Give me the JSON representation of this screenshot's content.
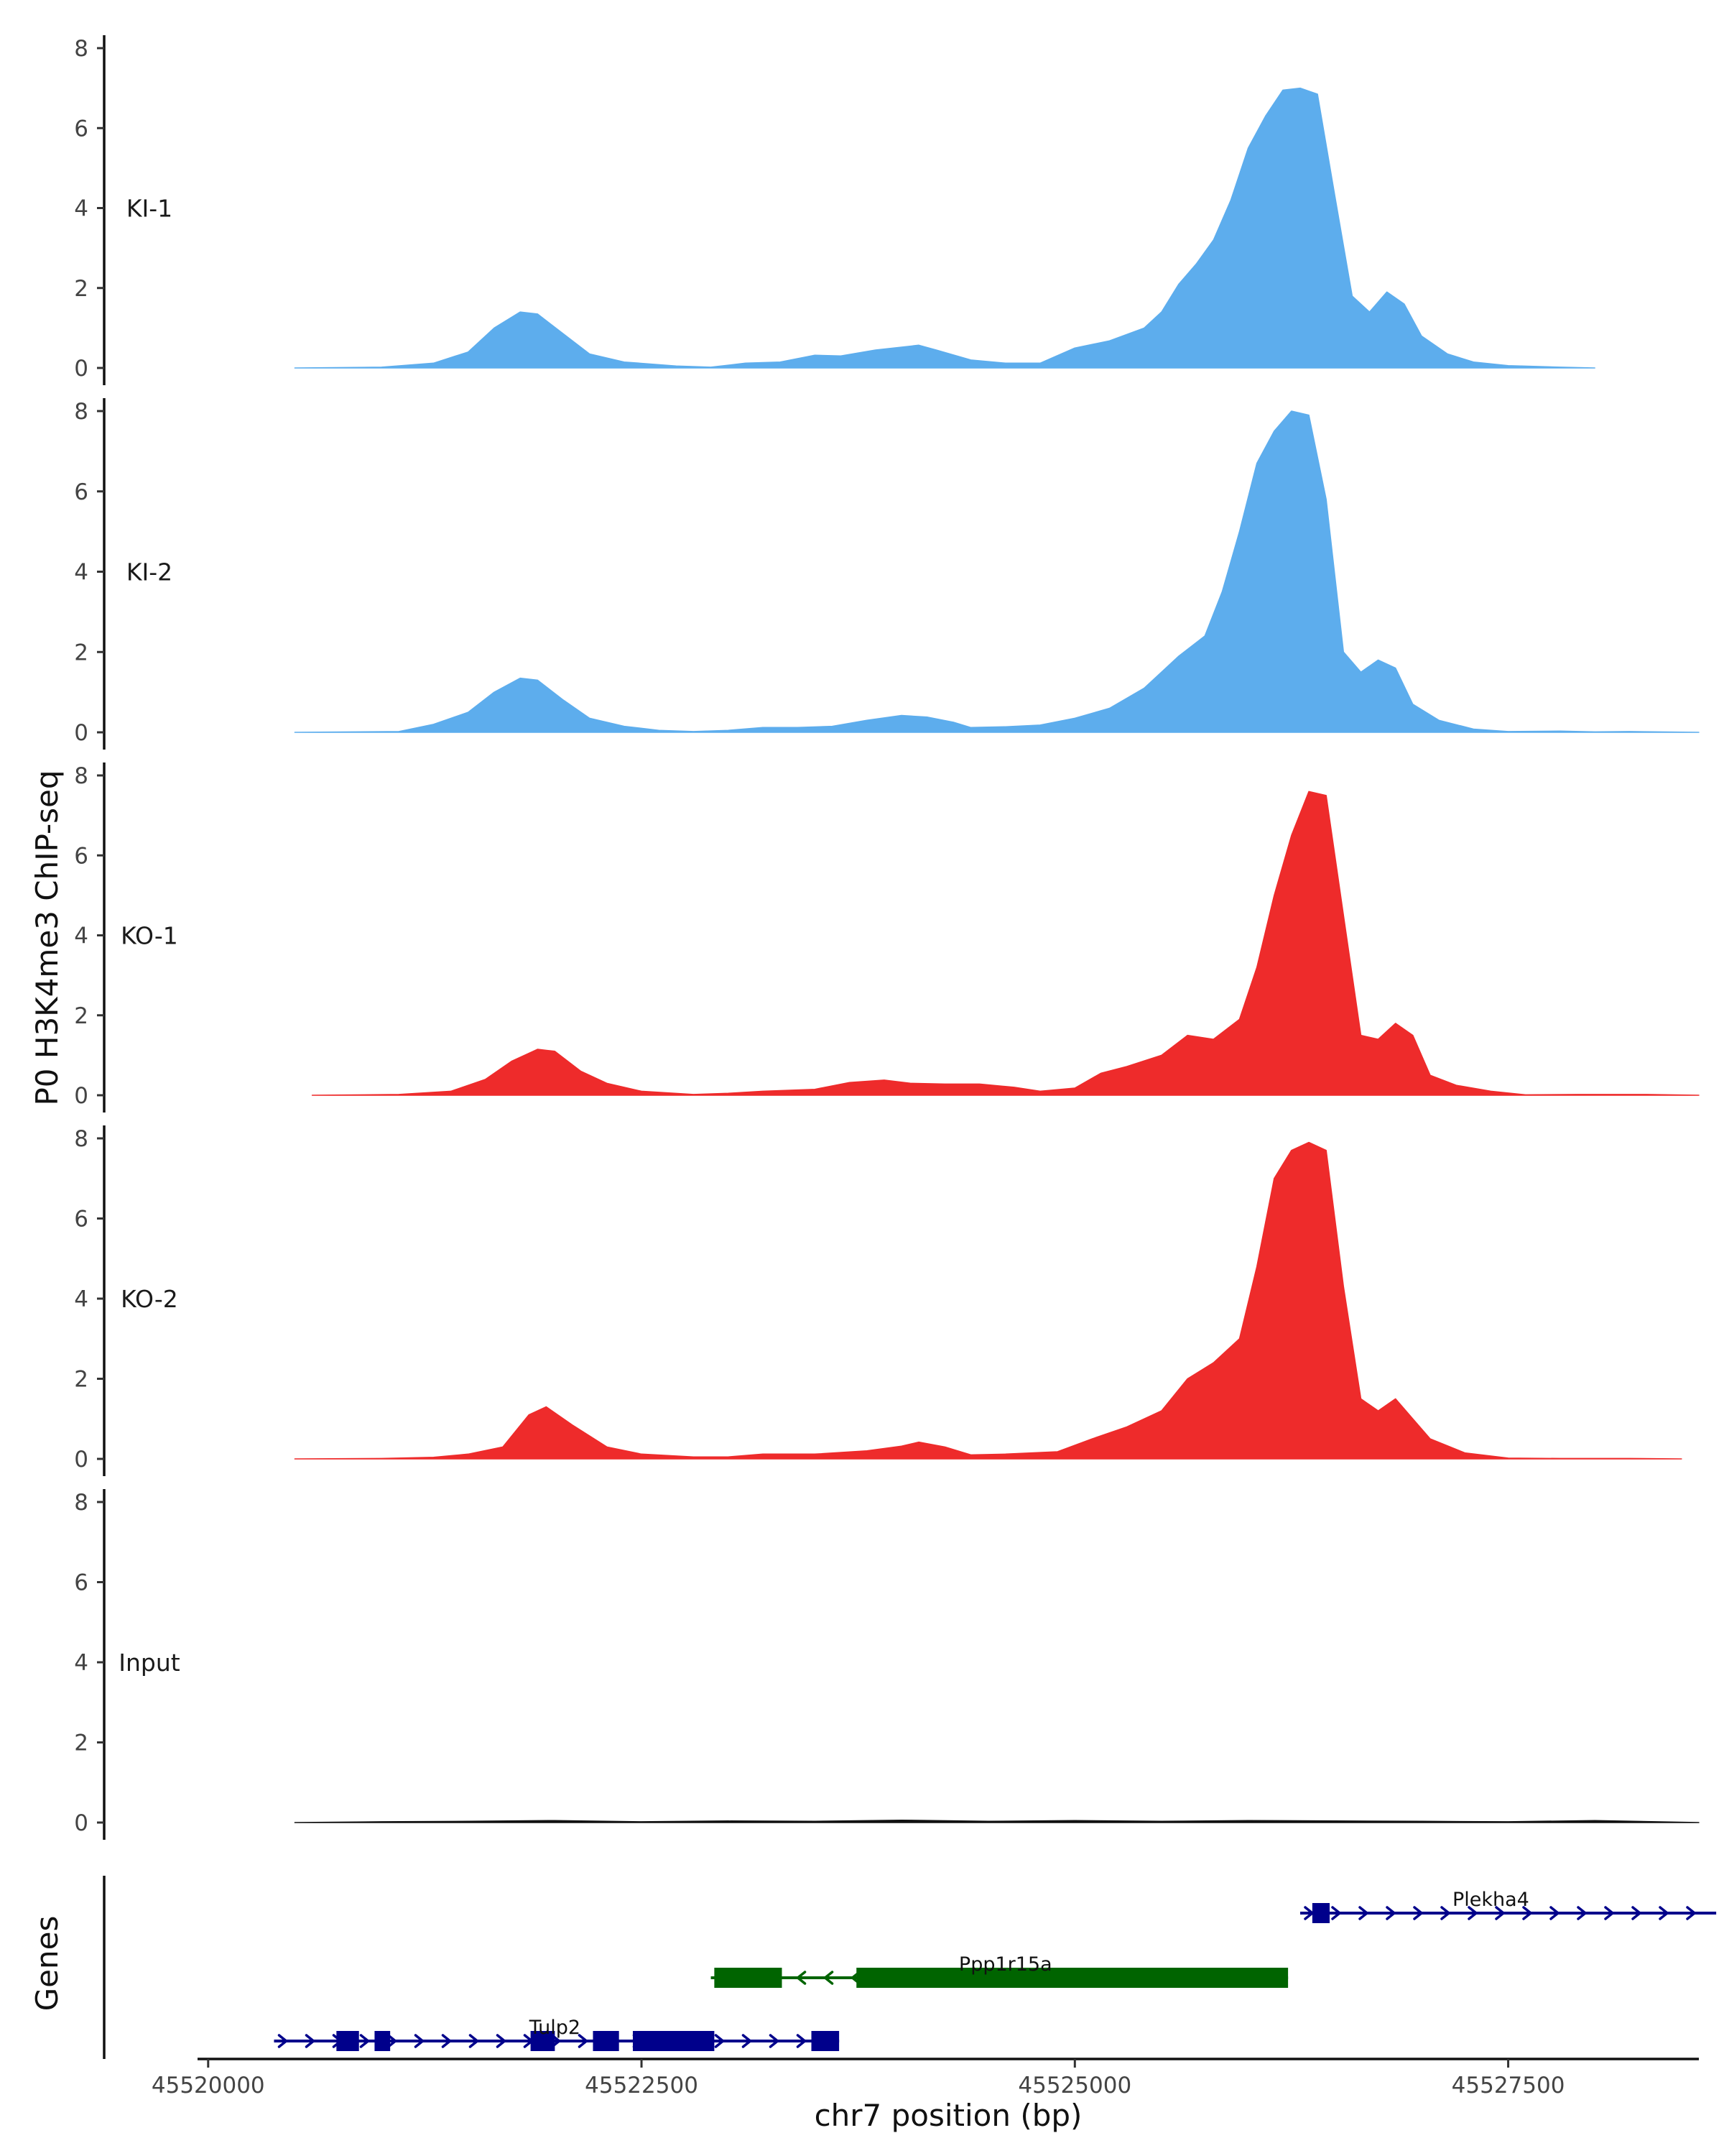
{
  "chart_data": {
    "type": "area",
    "ylabel": "P0 H3K4me3 ChIP-seq",
    "xlabel": "chr7 position (bp)",
    "genes_label": "Genes",
    "xlim": [
      45519400,
      45528600
    ],
    "xticks": [
      45520000,
      45522500,
      45525000,
      45527500
    ],
    "xtick_labels": [
      "45520000",
      "45522500",
      "45525000",
      "45527500"
    ],
    "ylim": [
      0,
      8.2
    ],
    "yticks": [
      0,
      2,
      4,
      6,
      8
    ],
    "ytick_labels": [
      "0",
      "2",
      "4",
      "6",
      "8"
    ],
    "tracks": [
      {
        "name": "KI-1",
        "color": "#5DADED",
        "points": [
          [
            45520500,
            0
          ],
          [
            45521000,
            0.02
          ],
          [
            45521300,
            0.12
          ],
          [
            45521500,
            0.4
          ],
          [
            45521650,
            1.0
          ],
          [
            45521800,
            1.4
          ],
          [
            45521900,
            1.35
          ],
          [
            45522050,
            0.85
          ],
          [
            45522200,
            0.35
          ],
          [
            45522400,
            0.15
          ],
          [
            45522700,
            0.05
          ],
          [
            45522900,
            0.02
          ],
          [
            45523100,
            0.12
          ],
          [
            45523300,
            0.15
          ],
          [
            45523500,
            0.32
          ],
          [
            45523650,
            0.3
          ],
          [
            45523850,
            0.45
          ],
          [
            45524100,
            0.57
          ],
          [
            45524200,
            0.45
          ],
          [
            45524400,
            0.2
          ],
          [
            45524600,
            0.12
          ],
          [
            45524800,
            0.12
          ],
          [
            45525000,
            0.5
          ],
          [
            45525200,
            0.68
          ],
          [
            45525400,
            1.0
          ],
          [
            45525500,
            1.4
          ],
          [
            45525600,
            2.1
          ],
          [
            45525700,
            2.6
          ],
          [
            45525800,
            3.2
          ],
          [
            45525900,
            4.2
          ],
          [
            45526000,
            5.5
          ],
          [
            45526100,
            6.3
          ],
          [
            45526200,
            6.95
          ],
          [
            45526300,
            7.0
          ],
          [
            45526400,
            6.85
          ],
          [
            45526500,
            4.3
          ],
          [
            45526600,
            1.8
          ],
          [
            45526700,
            1.4
          ],
          [
            45526800,
            1.9
          ],
          [
            45526900,
            1.6
          ],
          [
            45527000,
            0.8
          ],
          [
            45527150,
            0.35
          ],
          [
            45527300,
            0.15
          ],
          [
            45527500,
            0.06
          ],
          [
            45527800,
            0.02
          ],
          [
            45528000,
            0
          ]
        ]
      },
      {
        "name": "KI-2",
        "color": "#5DADED",
        "points": [
          [
            45520500,
            0
          ],
          [
            45521100,
            0.02
          ],
          [
            45521300,
            0.2
          ],
          [
            45521500,
            0.5
          ],
          [
            45521650,
            1.0
          ],
          [
            45521800,
            1.35
          ],
          [
            45521900,
            1.3
          ],
          [
            45522050,
            0.8
          ],
          [
            45522200,
            0.35
          ],
          [
            45522400,
            0.15
          ],
          [
            45522600,
            0.05
          ],
          [
            45522800,
            0.02
          ],
          [
            45523000,
            0.05
          ],
          [
            45523200,
            0.12
          ],
          [
            45523400,
            0.12
          ],
          [
            45523600,
            0.15
          ],
          [
            45523800,
            0.3
          ],
          [
            45524000,
            0.42
          ],
          [
            45524150,
            0.38
          ],
          [
            45524300,
            0.25
          ],
          [
            45524400,
            0.12
          ],
          [
            45524600,
            0.14
          ],
          [
            45524800,
            0.18
          ],
          [
            45525000,
            0.35
          ],
          [
            45525200,
            0.6
          ],
          [
            45525400,
            1.1
          ],
          [
            45525500,
            1.5
          ],
          [
            45525600,
            1.9
          ],
          [
            45525750,
            2.4
          ],
          [
            45525850,
            3.5
          ],
          [
            45525950,
            5.0
          ],
          [
            45526050,
            6.7
          ],
          [
            45526150,
            7.5
          ],
          [
            45526250,
            8.0
          ],
          [
            45526350,
            7.9
          ],
          [
            45526450,
            5.8
          ],
          [
            45526550,
            2.0
          ],
          [
            45526650,
            1.5
          ],
          [
            45526750,
            1.8
          ],
          [
            45526850,
            1.6
          ],
          [
            45526950,
            0.7
          ],
          [
            45527100,
            0.3
          ],
          [
            45527300,
            0.08
          ],
          [
            45527500,
            0.02
          ],
          [
            45527800,
            0.03
          ],
          [
            45528000,
            0.01
          ],
          [
            45528200,
            0.02
          ],
          [
            45528600,
            0
          ]
        ]
      },
      {
        "name": "KO-1",
        "color": "#EE2B2B",
        "points": [
          [
            45520600,
            0
          ],
          [
            45521100,
            0.02
          ],
          [
            45521400,
            0.1
          ],
          [
            45521600,
            0.4
          ],
          [
            45521750,
            0.85
          ],
          [
            45521900,
            1.15
          ],
          [
            45522000,
            1.1
          ],
          [
            45522150,
            0.6
          ],
          [
            45522300,
            0.3
          ],
          [
            45522500,
            0.1
          ],
          [
            45522800,
            0.02
          ],
          [
            45523000,
            0.05
          ],
          [
            45523200,
            0.1
          ],
          [
            45523500,
            0.15
          ],
          [
            45523700,
            0.32
          ],
          [
            45523900,
            0.38
          ],
          [
            45524050,
            0.3
          ],
          [
            45524250,
            0.28
          ],
          [
            45524450,
            0.28
          ],
          [
            45524650,
            0.2
          ],
          [
            45524800,
            0.1
          ],
          [
            45525000,
            0.18
          ],
          [
            45525150,
            0.55
          ],
          [
            45525300,
            0.72
          ],
          [
            45525500,
            1.0
          ],
          [
            45525650,
            1.5
          ],
          [
            45525800,
            1.4
          ],
          [
            45525950,
            1.9
          ],
          [
            45526050,
            3.2
          ],
          [
            45526150,
            5.0
          ],
          [
            45526250,
            6.5
          ],
          [
            45526350,
            7.6
          ],
          [
            45526450,
            7.5
          ],
          [
            45526550,
            4.5
          ],
          [
            45526650,
            1.5
          ],
          [
            45526750,
            1.4
          ],
          [
            45526850,
            1.8
          ],
          [
            45526950,
            1.5
          ],
          [
            45527050,
            0.5
          ],
          [
            45527200,
            0.25
          ],
          [
            45527400,
            0.1
          ],
          [
            45527600,
            0.01
          ],
          [
            45527900,
            0.02
          ],
          [
            45528300,
            0.02
          ],
          [
            45528600,
            0
          ]
        ]
      },
      {
        "name": "KO-2",
        "color": "#EE2B2B",
        "points": [
          [
            45520500,
            0
          ],
          [
            45521000,
            0.01
          ],
          [
            45521300,
            0.04
          ],
          [
            45521500,
            0.12
          ],
          [
            45521700,
            0.3
          ],
          [
            45521850,
            1.1
          ],
          [
            45521950,
            1.3
          ],
          [
            45522100,
            0.85
          ],
          [
            45522300,
            0.3
          ],
          [
            45522500,
            0.12
          ],
          [
            45522800,
            0.05
          ],
          [
            45523000,
            0.05
          ],
          [
            45523200,
            0.12
          ],
          [
            45523500,
            0.12
          ],
          [
            45523800,
            0.2
          ],
          [
            45524000,
            0.32
          ],
          [
            45524100,
            0.42
          ],
          [
            45524250,
            0.3
          ],
          [
            45524400,
            0.1
          ],
          [
            45524600,
            0.12
          ],
          [
            45524900,
            0.18
          ],
          [
            45525100,
            0.5
          ],
          [
            45525300,
            0.8
          ],
          [
            45525500,
            1.2
          ],
          [
            45525650,
            2.0
          ],
          [
            45525800,
            2.4
          ],
          [
            45525950,
            3.0
          ],
          [
            45526050,
            4.8
          ],
          [
            45526150,
            7.0
          ],
          [
            45526250,
            7.7
          ],
          [
            45526350,
            7.9
          ],
          [
            45526450,
            7.7
          ],
          [
            45526550,
            4.3
          ],
          [
            45526650,
            1.5
          ],
          [
            45526750,
            1.2
          ],
          [
            45526850,
            1.5
          ],
          [
            45526950,
            1.0
          ],
          [
            45527050,
            0.5
          ],
          [
            45527250,
            0.15
          ],
          [
            45527500,
            0.02
          ],
          [
            45527800,
            0.01
          ],
          [
            45528200,
            0.01
          ],
          [
            45528500,
            0
          ]
        ]
      },
      {
        "name": "Input",
        "color": "#111111",
        "points": [
          [
            45520500,
            0
          ],
          [
            45521000,
            0.02
          ],
          [
            45521500,
            0.03
          ],
          [
            45522000,
            0.05
          ],
          [
            45522500,
            0.02
          ],
          [
            45523000,
            0.04
          ],
          [
            45523500,
            0.03
          ],
          [
            45524000,
            0.06
          ],
          [
            45524500,
            0.03
          ],
          [
            45525000,
            0.05
          ],
          [
            45525500,
            0.03
          ],
          [
            45526000,
            0.05
          ],
          [
            45526500,
            0.04
          ],
          [
            45527000,
            0.03
          ],
          [
            45527500,
            0.02
          ],
          [
            45528000,
            0.05
          ],
          [
            45528600,
            0
          ]
        ]
      }
    ],
    "gene_tracks": [
      {
        "name": "Plekha4",
        "color": "#00008B",
        "strand": "+",
        "row": 0,
        "start": 45526300,
        "end": 45528700,
        "exons": [
          [
            45526370,
            45526470
          ]
        ],
        "label_pos": 45527400
      },
      {
        "name": "Ppp1r15a",
        "color": "#006400",
        "strand": "-",
        "row": 1,
        "start": 45522900,
        "end": 45526230,
        "exons": [
          [
            45522920,
            45523310
          ],
          [
            45523740,
            45526230
          ]
        ],
        "label_pos": 45524600
      },
      {
        "name": "Tulp2",
        "color": "#00008B",
        "strand": "+",
        "row": 2,
        "start": 45520380,
        "end": 45523640,
        "exons": [
          [
            45520740,
            45520870
          ],
          [
            45520960,
            45521050
          ],
          [
            45521860,
            45522000
          ],
          [
            45522220,
            45522370
          ],
          [
            45522450,
            45522920
          ],
          [
            45523480,
            45523640
          ]
        ],
        "label_pos": 45522000
      }
    ]
  }
}
